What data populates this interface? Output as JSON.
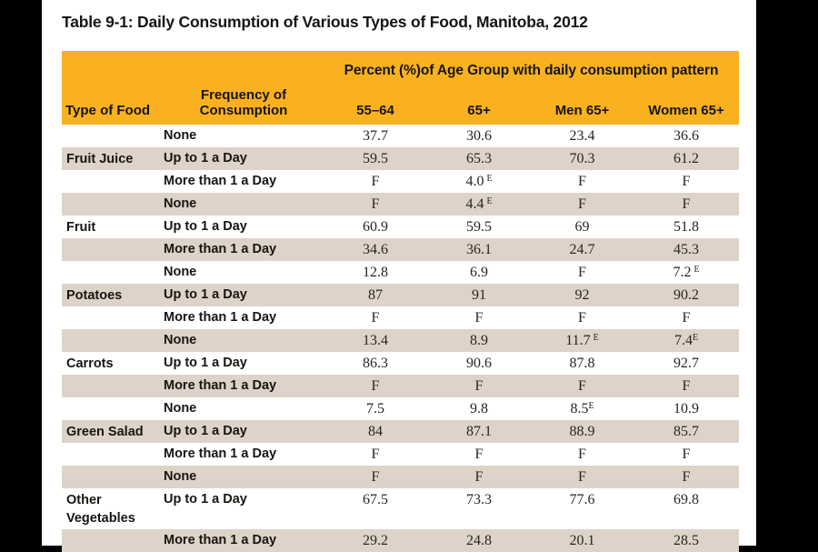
{
  "title": "Table 9-1: Daily Consumption of Various Types of Food, Manitoba, 2012",
  "colors": {
    "page_bg": "#000000",
    "paper_bg": "#ffffff",
    "header_orange": "#F9B120",
    "row_tan": "#DDD3C8",
    "ink": "#181512"
  },
  "table": {
    "span_header": "Percent (%)of Age Group with daily consumption pattern",
    "columns": {
      "food": "Type of Food",
      "frequency": "Frequency of Consumption",
      "groups": [
        "55–64",
        "65+",
        "Men 65+",
        "Women 65+"
      ]
    },
    "rows": [
      {
        "food": "",
        "freq": "None",
        "values": [
          "37.7",
          "30.6",
          "23.4",
          "36.6"
        ]
      },
      {
        "food": "Fruit Juice",
        "freq": "Up to 1 a Day",
        "values": [
          "59.5",
          "65.3",
          "70.3",
          "61.2"
        ]
      },
      {
        "food": "",
        "freq": "More than 1 a Day",
        "values": [
          "F",
          {
            "t": "4.0",
            "sup": "E",
            "gap": true
          },
          "F",
          "F"
        ]
      },
      {
        "food": "",
        "freq": "None",
        "values": [
          "F",
          {
            "t": "4.4",
            "sup": "E",
            "gap": true
          },
          "F",
          "F"
        ]
      },
      {
        "food": "Fruit",
        "freq": "Up to 1 a Day",
        "values": [
          "60.9",
          "59.5",
          "69",
          "51.8"
        ]
      },
      {
        "food": "",
        "freq": "More than 1 a Day",
        "values": [
          "34.6",
          "36.1",
          "24.7",
          "45.3"
        ]
      },
      {
        "food": "",
        "freq": "None",
        "values": [
          "12.8",
          "6.9",
          "F",
          {
            "t": "7.2",
            "sup": "E",
            "gap": true
          }
        ]
      },
      {
        "food": "Potatoes",
        "freq": "Up to 1 a Day",
        "values": [
          "87",
          "91",
          "92",
          "90.2"
        ]
      },
      {
        "food": "",
        "freq": "More than 1 a Day",
        "values": [
          "F",
          "F",
          "F",
          "F"
        ]
      },
      {
        "food": "",
        "freq": "None",
        "values": [
          "13.4",
          "8.9",
          {
            "t": "11.7",
            "sup": "E",
            "gap": true
          },
          {
            "t": "7.4",
            "sup": "E",
            "gap": false
          }
        ]
      },
      {
        "food": "Carrots",
        "freq": "Up to 1 a Day",
        "values": [
          "86.3",
          "90.6",
          "87.8",
          "92.7"
        ]
      },
      {
        "food": "",
        "freq": "More than 1 a Day",
        "values": [
          "F",
          "F",
          "F",
          "F"
        ]
      },
      {
        "food": "",
        "freq": "None",
        "values": [
          "7.5",
          "9.8",
          {
            "t": "8.5",
            "sup": "E",
            "gap": false
          },
          "10.9"
        ]
      },
      {
        "food": "Green Salad",
        "freq": "Up to 1 a Day",
        "values": [
          "84",
          "87.1",
          "88.9",
          "85.7"
        ]
      },
      {
        "food": "",
        "freq": "More than 1 a Day",
        "values": [
          "F",
          "F",
          "F",
          "F"
        ]
      },
      {
        "food": "",
        "freq": "None",
        "values": [
          "F",
          "F",
          "F",
          "F"
        ]
      },
      {
        "food": "Other Vegetables",
        "freq": "Up to 1 a Day",
        "values": [
          "67.5",
          "73.3",
          "77.6",
          "69.8"
        ]
      },
      {
        "food": "",
        "freq": "More than 1 a Day",
        "values": [
          "29.2",
          "24.8",
          "20.1",
          "28.5"
        ]
      }
    ]
  },
  "chart_data": {
    "type": "table",
    "title": "Table 9-1: Daily Consumption of Various Types of Food, Manitoba, 2012",
    "span_header": "Percent (%)of Age Group with daily consumption pattern",
    "columns": [
      "Type of Food",
      "Frequency of Consumption",
      "55–64",
      "65+",
      "Men 65+",
      "Women 65+"
    ],
    "rows": [
      [
        "Fruit Juice",
        "None",
        "37.7",
        "30.6",
        "23.4",
        "36.6"
      ],
      [
        "Fruit Juice",
        "Up to 1 a Day",
        "59.5",
        "65.3",
        "70.3",
        "61.2"
      ],
      [
        "Fruit Juice",
        "More than 1 a Day",
        "F",
        "4.0 E",
        "F",
        "F"
      ],
      [
        "Fruit",
        "None",
        "F",
        "4.4 E",
        "F",
        "F"
      ],
      [
        "Fruit",
        "Up to 1 a Day",
        "60.9",
        "59.5",
        "69",
        "51.8"
      ],
      [
        "Fruit",
        "More than 1 a Day",
        "34.6",
        "36.1",
        "24.7",
        "45.3"
      ],
      [
        "Potatoes",
        "None",
        "12.8",
        "6.9",
        "F",
        "7.2 E"
      ],
      [
        "Potatoes",
        "Up to 1 a Day",
        "87",
        "91",
        "92",
        "90.2"
      ],
      [
        "Potatoes",
        "More than 1 a Day",
        "F",
        "F",
        "F",
        "F"
      ],
      [
        "Carrots",
        "None",
        "13.4",
        "8.9",
        "11.7 E",
        "7.4 E"
      ],
      [
        "Carrots",
        "Up to 1 a Day",
        "86.3",
        "90.6",
        "87.8",
        "92.7"
      ],
      [
        "Carrots",
        "More than 1 a Day",
        "F",
        "F",
        "F",
        "F"
      ],
      [
        "Green Salad",
        "None",
        "7.5",
        "9.8",
        "8.5 E",
        "10.9"
      ],
      [
        "Green Salad",
        "Up to 1 a Day",
        "84",
        "87.1",
        "88.9",
        "85.7"
      ],
      [
        "Green Salad",
        "More than 1 a Day",
        "F",
        "F",
        "F",
        "F"
      ],
      [
        "Other Vegetables",
        "None",
        "F",
        "F",
        "F",
        "F"
      ],
      [
        "Other Vegetables",
        "Up to 1 a Day",
        "67.5",
        "73.3",
        "77.6",
        "69.8"
      ],
      [
        "Other Vegetables",
        "More than 1 a Day",
        "29.2",
        "24.8",
        "20.1",
        "28.5"
      ]
    ]
  }
}
